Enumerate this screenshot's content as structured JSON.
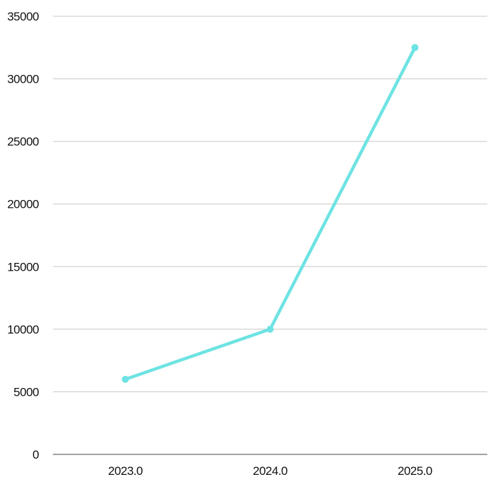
{
  "chart_data": {
    "type": "line",
    "title": "",
    "xlabel": "",
    "ylabel": "",
    "x": [
      2023.0,
      2024.0,
      2025.0
    ],
    "x_tick_labels": [
      "2023.0",
      "2024.0",
      "2025.0"
    ],
    "y_ticks": [
      0,
      5000,
      10000,
      15000,
      20000,
      25000,
      30000,
      35000
    ],
    "y_tick_labels": [
      "0",
      "5000",
      "10000",
      "15000",
      "20000",
      "25000",
      "30000",
      "35000"
    ],
    "ylim": [
      0,
      35000
    ],
    "xlim": [
      2022.5,
      2025.5
    ],
    "grid": "horizontal",
    "legend": "none",
    "series": [
      {
        "color": "#6ee3e3",
        "values": [
          6000,
          10000,
          32500
        ]
      }
    ]
  }
}
